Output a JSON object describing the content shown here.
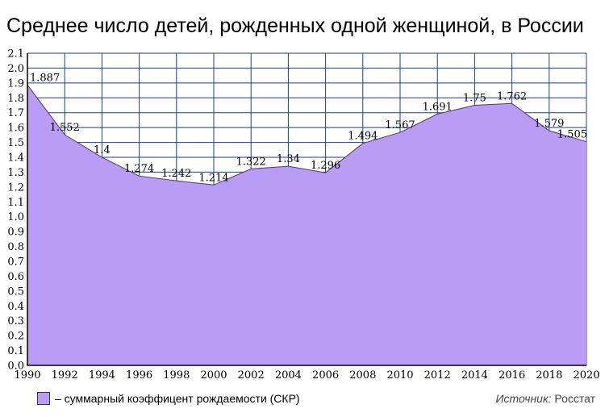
{
  "chart_data": {
    "type": "area",
    "title": "Среднее число детей, рожденных одной женщиной, в России",
    "xlabel": "",
    "ylabel": "",
    "x": [
      1990,
      1992,
      1994,
      1996,
      1998,
      2000,
      2002,
      2004,
      2006,
      2008,
      2010,
      2012,
      2014,
      2016,
      2018,
      2020
    ],
    "x_ticks": [
      "1990",
      "1992",
      "1994",
      "1996",
      "1998",
      "2000",
      "2002",
      "2004",
      "2006",
      "2008",
      "2010",
      "2012",
      "2014",
      "2016",
      "2018",
      "2020"
    ],
    "y_ticks": [
      "0.0",
      "0.1",
      "0.2",
      "0.3",
      "0.4",
      "0.5",
      "0.6",
      "0.7",
      "0.8",
      "0.9",
      "1.0",
      "1.1",
      "1.2",
      "1.3",
      "1.4",
      "1.5",
      "1.6",
      "1.7",
      "1.8",
      "1.9",
      "2.0",
      "2.1"
    ],
    "series": [
      {
        "name": "– суммарный коэффицент рождаемости (СКР)",
        "values": [
          1.887,
          1.552,
          1.4,
          1.274,
          1.242,
          1.214,
          1.322,
          1.34,
          1.296,
          1.494,
          1.567,
          1.691,
          1.75,
          1.762,
          1.579,
          1.505
        ],
        "labels": [
          "1.887",
          "1.552",
          "1.4",
          "1.274",
          "1.242",
          "1.214",
          "1.322",
          "1.34",
          "1.296",
          "1.494",
          "1.567",
          "1.691",
          "1.75",
          "1.762",
          "1.579",
          "1.505"
        ]
      }
    ],
    "xlim": [
      1990,
      2020
    ],
    "ylim": [
      0,
      2.1
    ],
    "grid": true,
    "legend_position": "bottom-left"
  },
  "source": {
    "label": "Источник:",
    "value": "Росстат"
  },
  "colors": {
    "fill": "#b89cf6",
    "line": "#4a3a6e",
    "grid": "#1f3d8a",
    "axis": "#000000"
  }
}
